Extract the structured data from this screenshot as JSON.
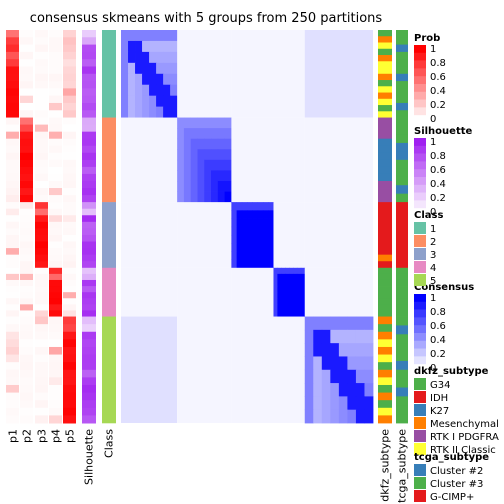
{
  "chart_data": {
    "type": "heatmap",
    "title": "consensus skmeans with 5 groups from 250 partitions",
    "n_classes": 5,
    "class_sizes": [
      88,
      85,
      66,
      49,
      107
    ],
    "column_labels": [
      "p1",
      "p2",
      "p3",
      "p4",
      "p5",
      "Silhouette",
      "Class",
      "dkfz_subtype",
      "tcga_subtype"
    ],
    "legends": [
      {
        "title": "Prob",
        "type": "gradient",
        "colors": [
          "#ffffff",
          "#ff0000"
        ],
        "ticks": [
          "1",
          "0.8",
          "0.6",
          "0.4",
          "0.2",
          "0"
        ]
      },
      {
        "title": "Silhouette",
        "type": "gradient",
        "colors": [
          "#ffffff",
          "#a020f0"
        ],
        "ticks": [
          "1",
          "0.8",
          "0.6",
          "0.4",
          "0.2",
          "0"
        ]
      },
      {
        "title": "Class",
        "type": "discrete",
        "items": [
          {
            "label": "1",
            "color": "#66c2a5"
          },
          {
            "label": "2",
            "color": "#fc8d62"
          },
          {
            "label": "3",
            "color": "#8da0cb"
          },
          {
            "label": "4",
            "color": "#e78ac3"
          },
          {
            "label": "5",
            "color": "#a6d854"
          }
        ]
      },
      {
        "title": "Consensus",
        "type": "gradient",
        "colors": [
          "#ffffff",
          "#0000ff"
        ],
        "ticks": [
          "1",
          "0.8",
          "0.6",
          "0.4",
          "0.2",
          "0"
        ]
      },
      {
        "title": "dkfz_subtype",
        "type": "discrete",
        "items": [
          {
            "label": "G34",
            "color": "#4daf4a"
          },
          {
            "label": "IDH",
            "color": "#e41a1c"
          },
          {
            "label": "K27",
            "color": "#377eb8"
          },
          {
            "label": "Mesenchymal",
            "color": "#ff7f00"
          },
          {
            "label": "RTK I PDGFRA",
            "color": "#984ea3"
          },
          {
            "label": "RTK II Classic",
            "color": "#ffff33"
          }
        ]
      },
      {
        "title": "tcga_subtype",
        "type": "discrete",
        "items": [
          {
            "label": "Cluster #2",
            "color": "#377eb8"
          },
          {
            "label": "Cluster #3",
            "color": "#4daf4a"
          },
          {
            "label": "G-CIMP+",
            "color": "#e41a1c"
          }
        ]
      }
    ]
  }
}
